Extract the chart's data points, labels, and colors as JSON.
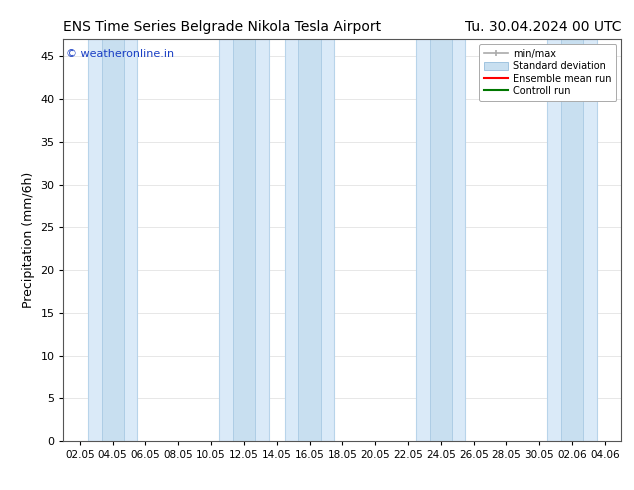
{
  "title_left": "ENS Time Series Belgrade Nikola Tesla Airport",
  "title_right": "Tu. 30.04.2024 00 UTC",
  "ylabel": "Precipitation (mm/6h)",
  "watermark": "© weatheronline.in",
  "watermark_color": "#1a3fc4",
  "ylim": [
    0,
    47
  ],
  "yticks": [
    0,
    5,
    10,
    15,
    20,
    25,
    30,
    35,
    40,
    45
  ],
  "xtick_labels": [
    "02.05",
    "04.05",
    "06.05",
    "08.05",
    "10.05",
    "12.05",
    "14.05",
    "16.05",
    "18.05",
    "20.05",
    "22.05",
    "24.05",
    "26.05",
    "28.05",
    "30.05",
    "02.06",
    "04.06"
  ],
  "n_ticks": 17,
  "shaded_band_indices": [
    1,
    5,
    7,
    11,
    15
  ],
  "band_color": "#daeaf8",
  "band_edge_color": "#b8d4ea",
  "background_color": "#ffffff",
  "grid_color": "#dddddd",
  "legend_labels": [
    "min/max",
    "Standard deviation",
    "Ensemble mean run",
    "Controll run"
  ],
  "minmax_color": "#aaaaaa",
  "std_color": "#c8dff0",
  "std_edge_color": "#a0c4e0",
  "ens_color": "#ff0000",
  "ctrl_color": "#007700",
  "title_fontsize": 10,
  "ylabel_fontsize": 9,
  "tick_fontsize": 8,
  "watermark_fontsize": 8
}
